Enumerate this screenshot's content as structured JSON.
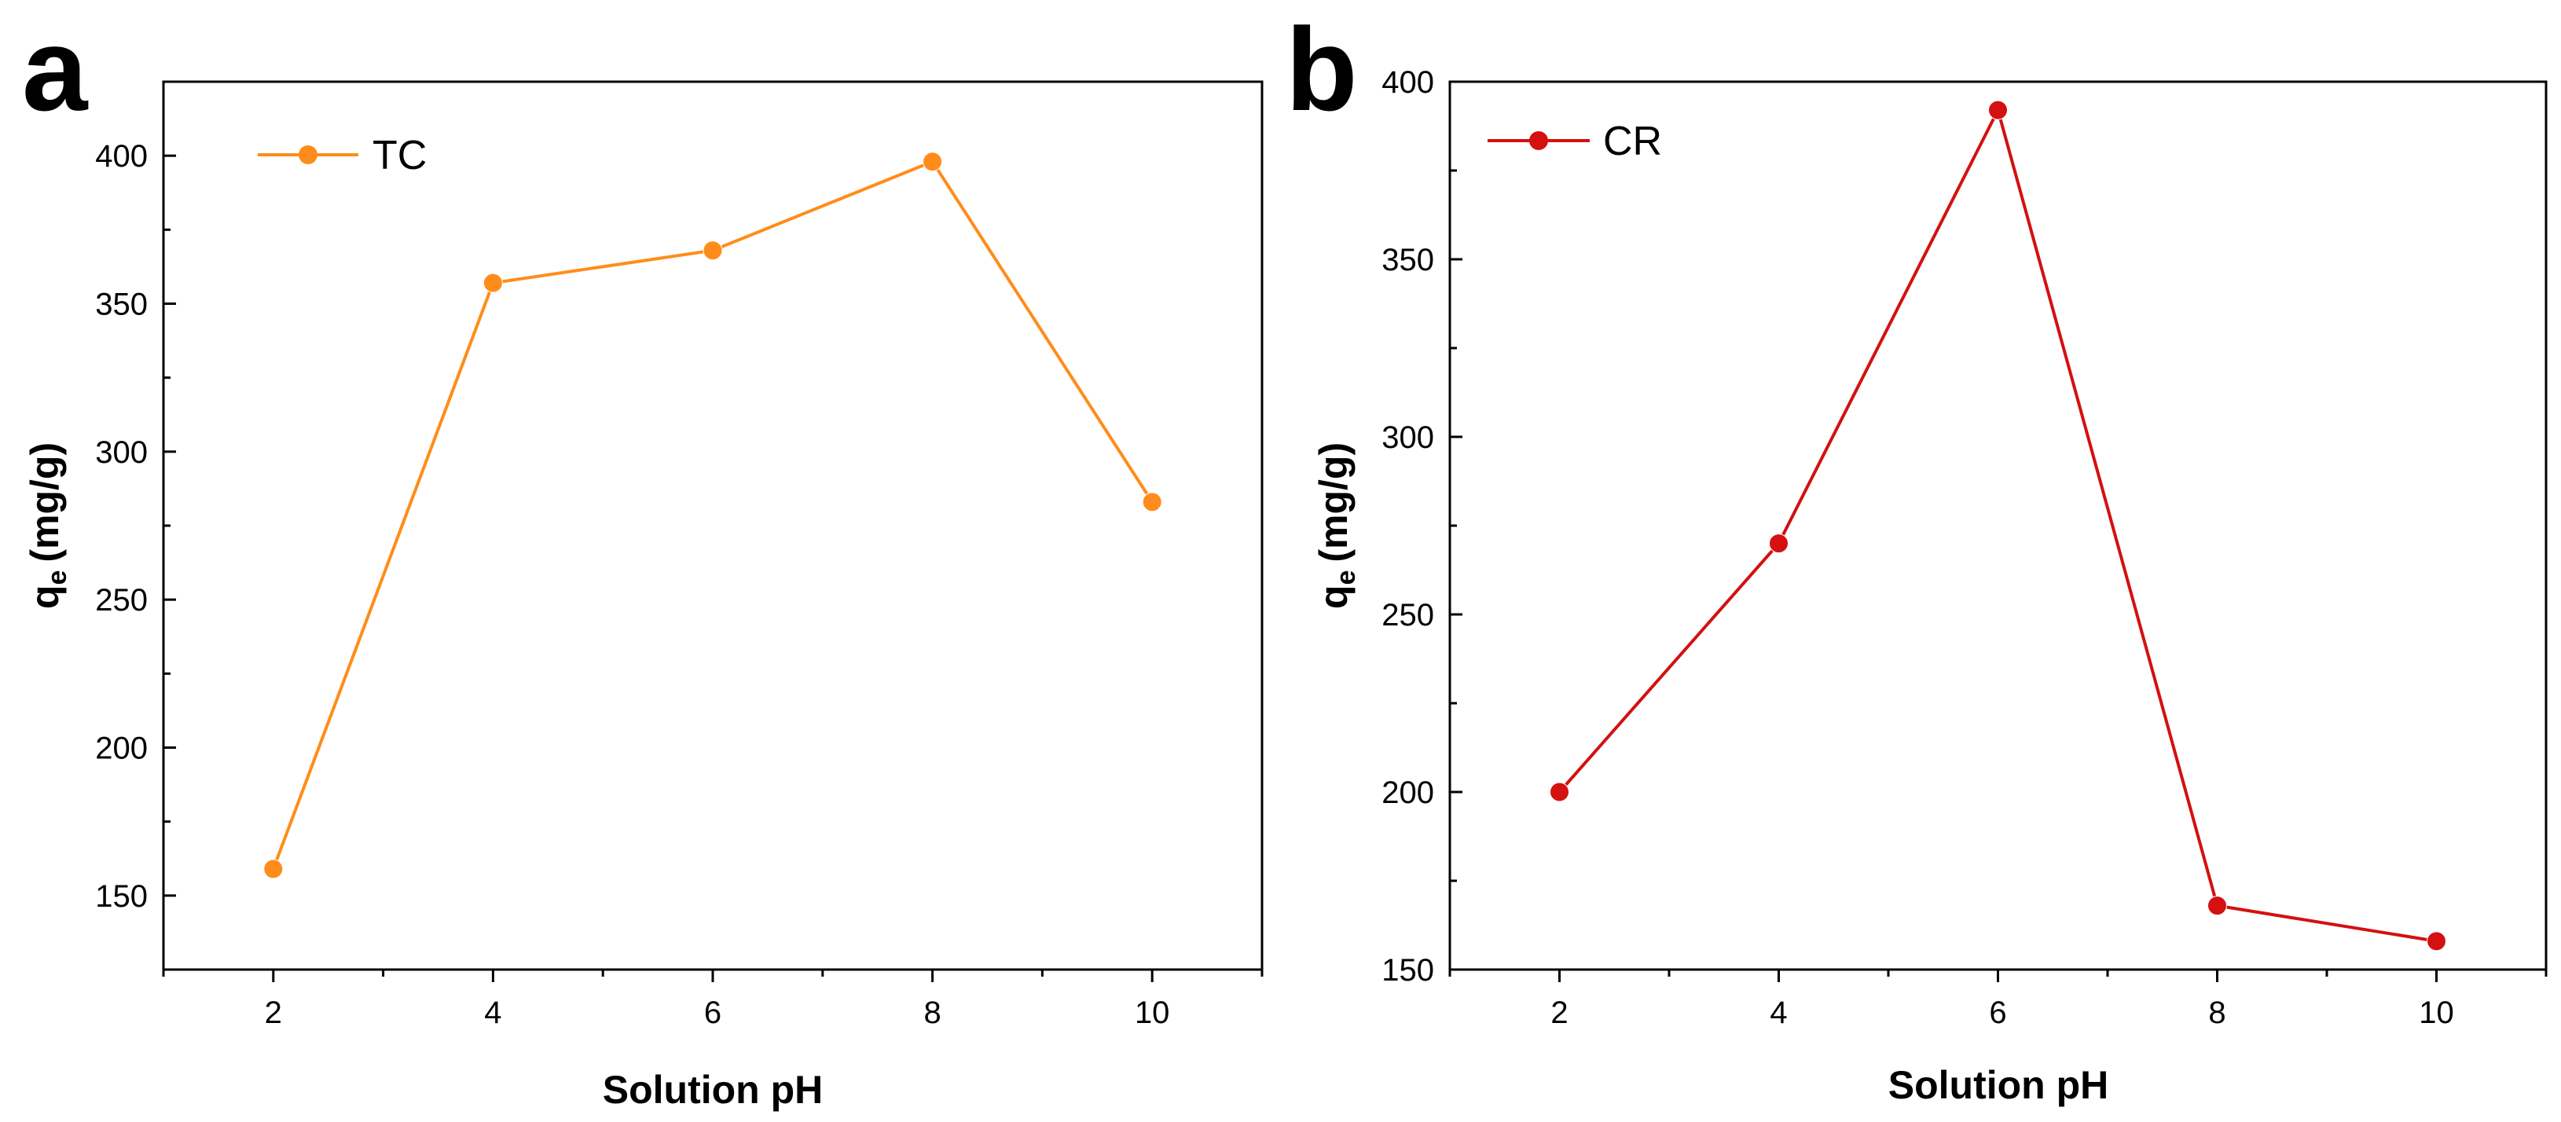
{
  "chart_data": [
    {
      "panel": "a",
      "type": "line",
      "x": [
        2,
        4,
        6,
        8,
        10
      ],
      "series": [
        {
          "name": "TC",
          "values": [
            159,
            357,
            368,
            398,
            283
          ],
          "color": "#ff8c1a"
        }
      ],
      "xlabel": "Solution pH",
      "ylabel_main": "q",
      "ylabel_sub": "e",
      "ylabel_unit": "(mg/g)",
      "xlim": [
        1,
        11
      ],
      "ylim": [
        125,
        425
      ],
      "xticks": [
        2,
        4,
        6,
        8,
        10
      ],
      "yticks": [
        150,
        200,
        250,
        300,
        350,
        400
      ],
      "legend": "top-left",
      "grid": false
    },
    {
      "panel": "b",
      "type": "line",
      "x": [
        2,
        4,
        6,
        8,
        10
      ],
      "series": [
        {
          "name": "CR",
          "values": [
            200,
            270,
            392,
            168,
            158
          ],
          "color": "#d41010"
        }
      ],
      "xlabel": "Solution pH",
      "ylabel_main": "q",
      "ylabel_sub": "e",
      "ylabel_unit": "(mg/g)",
      "xlim": [
        1,
        11
      ],
      "ylim": [
        150,
        400
      ],
      "xticks": [
        2,
        4,
        6,
        8,
        10
      ],
      "yticks": [
        150,
        200,
        250,
        300,
        350,
        400
      ],
      "legend": "top-left",
      "grid": false
    }
  ]
}
